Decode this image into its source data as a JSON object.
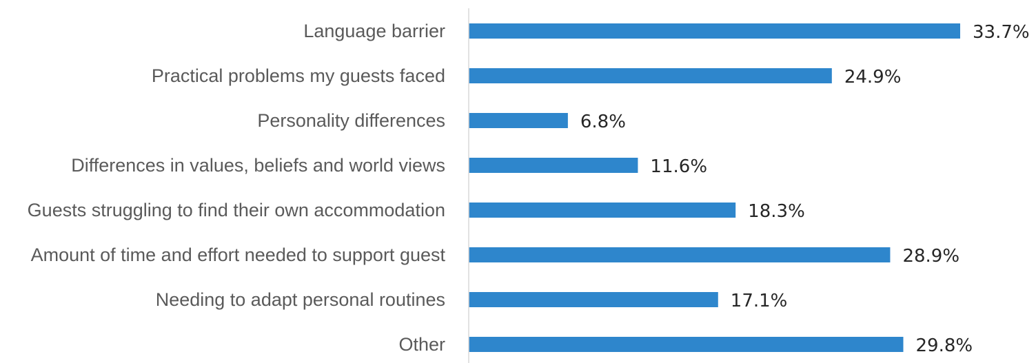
{
  "chart_data": {
    "type": "bar",
    "orientation": "horizontal",
    "categories": [
      "Language barrier",
      "Practical problems my guests faced",
      "Personality differences",
      "Differences in values, beliefs and world views",
      "Guests struggling to find their own accommodation",
      "Amount of time and effort needed to support guest",
      "Needing to adapt personal routines",
      "Other"
    ],
    "values": [
      33.7,
      24.9,
      6.8,
      11.6,
      18.3,
      28.9,
      17.1,
      29.8
    ],
    "value_labels": [
      "33.7%",
      "24.9%",
      "6.8%",
      "11.6%",
      "18.3%",
      "28.9%",
      "17.1%",
      "29.8%"
    ],
    "xlim": [
      0,
      40
    ],
    "grid": false,
    "colors": {
      "bar": "#2e86cc",
      "axis": "#d9d9d9",
      "category_text": "#5a5a5a",
      "value_text": "#262626"
    }
  }
}
